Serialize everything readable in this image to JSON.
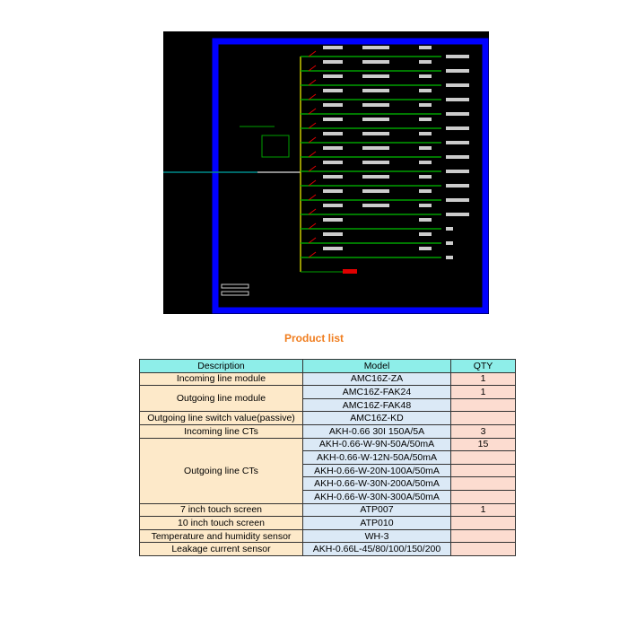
{
  "title": "Product list",
  "headers": [
    "Description",
    "Model",
    "QTY"
  ],
  "groups": [
    {
      "description": "Incoming line module",
      "items": [
        {
          "model": "AMC16Z-ZA",
          "qty": "1"
        }
      ]
    },
    {
      "description": "Outgoing line module",
      "items": [
        {
          "model": "AMC16Z-FAK24",
          "qty": "1"
        },
        {
          "model": "AMC16Z-FAK48",
          "qty": ""
        }
      ]
    },
    {
      "description": "Outgoing line switch value(passive)",
      "items": [
        {
          "model": "AMC16Z-KD",
          "qty": ""
        }
      ]
    },
    {
      "description": "Incoming line CTs",
      "items": [
        {
          "model": "AKH-0.66 30I 150A/5A",
          "qty": "3"
        }
      ]
    },
    {
      "description": "Outgoing line CTs",
      "items": [
        {
          "model": "AKH-0.66-W-9N-50A/50mA",
          "qty": "15"
        },
        {
          "model": "AKH-0.66-W-12N-50A/50mA",
          "qty": ""
        },
        {
          "model": "AKH-0.66-W-20N-100A/50mA",
          "qty": ""
        },
        {
          "model": "AKH-0.66-W-30N-200A/50mA",
          "qty": ""
        },
        {
          "model": "AKH-0.66-W-30N-300A/50mA",
          "qty": ""
        }
      ]
    },
    {
      "description": "7 inch touch screen",
      "items": [
        {
          "model": "ATP007",
          "qty": "1"
        }
      ]
    },
    {
      "description": "10 inch touch screen",
      "items": [
        {
          "model": "ATP010",
          "qty": ""
        }
      ]
    },
    {
      "description": "Temperature and humidity sensor",
      "items": [
        {
          "model": "WH-3",
          "qty": ""
        }
      ]
    },
    {
      "description": "Leakage current sensor",
      "items": [
        {
          "model": "AKH-0.66L-45/80/100/150/200",
          "qty": ""
        }
      ]
    }
  ],
  "diagram": {
    "feeder_count": 15,
    "colors": {
      "frame": "#0000ff",
      "bus": "#c8c800",
      "feeder": "#00a000",
      "breaker": "#e00000",
      "incoming": "#008c8c"
    }
  }
}
